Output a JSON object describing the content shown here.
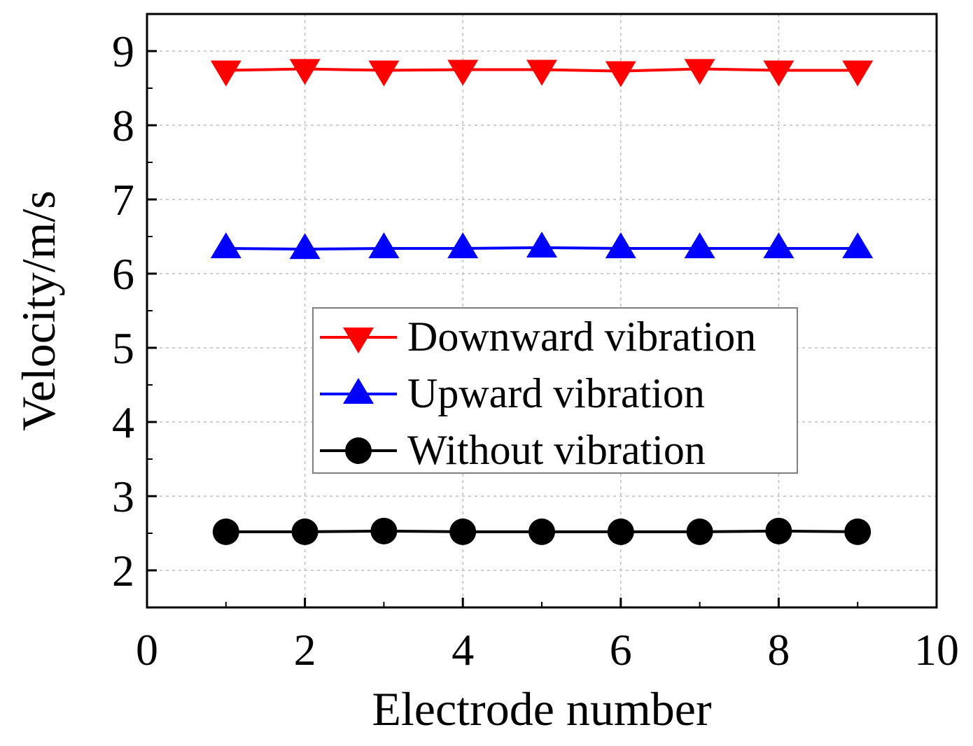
{
  "chart_data": {
    "type": "line",
    "title": "",
    "xlabel": "Electrode number",
    "ylabel": "Velocity/m/s",
    "xlim": [
      0,
      10
    ],
    "ylim": [
      1.5,
      9.5
    ],
    "xticks": [
      0,
      2,
      4,
      6,
      8,
      10
    ],
    "yticks": [
      2,
      3,
      4,
      5,
      6,
      7,
      8,
      9
    ],
    "grid": true,
    "legend_position": "center",
    "x": [
      1,
      2,
      3,
      4,
      5,
      6,
      7,
      8,
      9
    ],
    "series": [
      {
        "name": "Downward vibration",
        "color": "#ff0000",
        "marker": "triangle-down",
        "values": [
          8.74,
          8.76,
          8.74,
          8.75,
          8.75,
          8.73,
          8.76,
          8.74,
          8.74
        ]
      },
      {
        "name": "Upward vibration",
        "color": "#0000ff",
        "marker": "triangle-up",
        "values": [
          6.34,
          6.33,
          6.34,
          6.34,
          6.35,
          6.34,
          6.34,
          6.34,
          6.34
        ]
      },
      {
        "name": "Without vibration",
        "color": "#000000",
        "marker": "circle",
        "values": [
          2.52,
          2.52,
          2.53,
          2.52,
          2.52,
          2.52,
          2.52,
          2.53,
          2.52
        ]
      }
    ]
  }
}
